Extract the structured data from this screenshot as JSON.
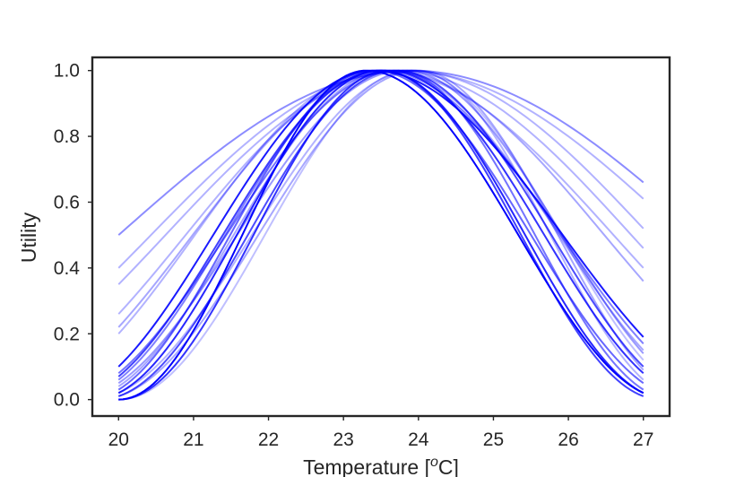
{
  "chart_data": {
    "type": "line",
    "title": "",
    "xlabel": "Temperature [",
    "xlabel_sup": "o",
    "xlabel_suffix": "C]",
    "ylabel": "Utility",
    "xlim": [
      19.65,
      27.35
    ],
    "ylim": [
      -0.05,
      1.04
    ],
    "xticks": [
      "20",
      "21",
      "22",
      "23",
      "24",
      "25",
      "26",
      "27"
    ],
    "yticks": [
      "0.0",
      "0.2",
      "0.4",
      "0.6",
      "0.8",
      "1.0"
    ],
    "grid": false,
    "legend": "none",
    "color": "#0000ff",
    "series": [
      {
        "peak": 23.9,
        "start": 0.5,
        "end": 0.66,
        "opacity": 0.45
      },
      {
        "peak": 23.8,
        "start": 0.4,
        "end": 0.61,
        "opacity": 0.3
      },
      {
        "peak": 23.85,
        "start": 0.35,
        "end": 0.52,
        "opacity": 0.3
      },
      {
        "peak": 23.7,
        "start": 0.26,
        "end": 0.46,
        "opacity": 0.3
      },
      {
        "peak": 23.6,
        "start": 0.22,
        "end": 0.36,
        "opacity": 0.35
      },
      {
        "peak": 23.5,
        "start": 0.2,
        "end": 0.4,
        "opacity": 0.3
      },
      {
        "peak": 23.4,
        "start": 0.1,
        "end": 0.19,
        "opacity": 0.9
      },
      {
        "peak": 23.5,
        "start": 0.06,
        "end": 0.17,
        "opacity": 0.5
      },
      {
        "peak": 23.6,
        "start": 0.04,
        "end": 0.15,
        "opacity": 0.35
      },
      {
        "peak": 23.3,
        "start": 0.0,
        "end": 0.02,
        "opacity": 1.0
      },
      {
        "peak": 23.5,
        "start": 0.02,
        "end": 0.02,
        "opacity": 0.85
      },
      {
        "peak": 23.7,
        "start": 0.01,
        "end": 0.1,
        "opacity": 0.7
      },
      {
        "peak": 23.4,
        "start": 0.03,
        "end": 0.05,
        "opacity": 0.6
      },
      {
        "peak": 23.6,
        "start": 0.0,
        "end": 0.08,
        "opacity": 0.8
      },
      {
        "peak": 23.8,
        "start": 0.05,
        "end": 0.14,
        "opacity": 0.4
      },
      {
        "peak": 23.7,
        "start": 0.08,
        "end": 0.03,
        "opacity": 0.55
      },
      {
        "peak": 23.9,
        "start": 0.0,
        "end": 0.12,
        "opacity": 0.25
      },
      {
        "peak": 23.95,
        "start": 0.02,
        "end": 0.06,
        "opacity": 0.3
      },
      {
        "peak": 23.5,
        "start": 0.07,
        "end": 0.01,
        "opacity": 0.75
      },
      {
        "peak": 24.0,
        "start": 0.01,
        "end": 0.09,
        "opacity": 0.35
      }
    ]
  }
}
